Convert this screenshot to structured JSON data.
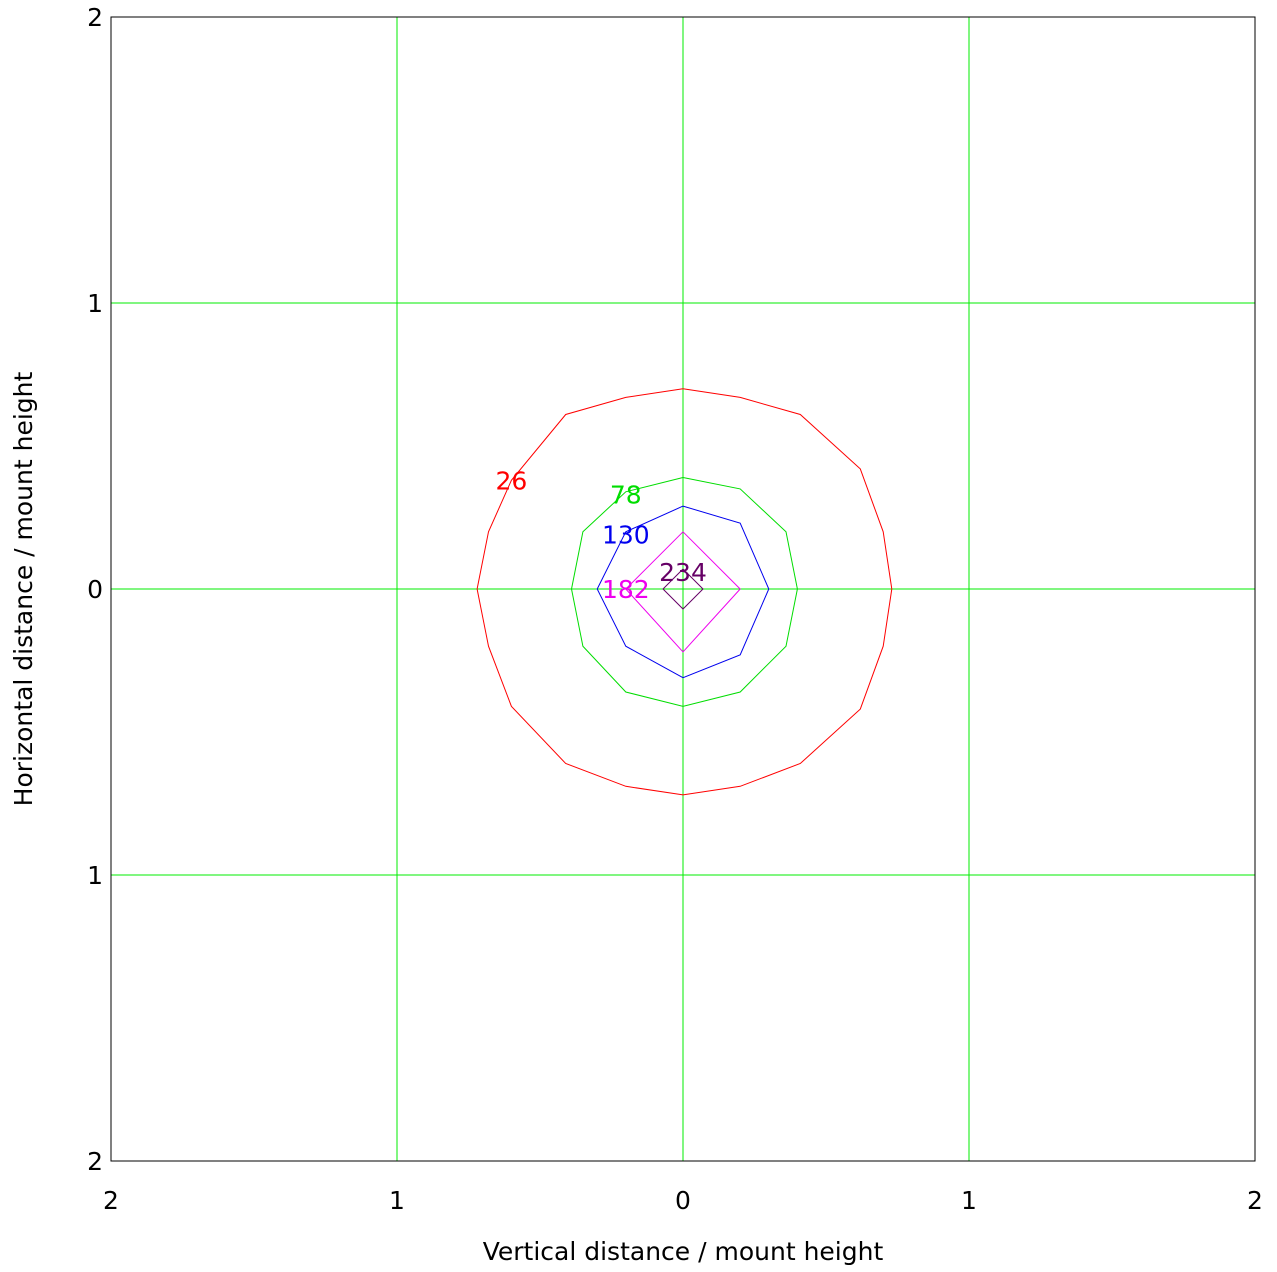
{
  "chart_data": {
    "type": "contour",
    "title": "",
    "xlabel": "Vertical distance / mount height",
    "ylabel": "Horizontal distance / mount height",
    "xlim": [
      -2,
      2
    ],
    "ylim": [
      -2,
      2
    ],
    "x_ticks": [
      {
        "value": -2,
        "label": "2"
      },
      {
        "value": -1,
        "label": "1"
      },
      {
        "value": 0,
        "label": "0"
      },
      {
        "value": 1,
        "label": "1"
      },
      {
        "value": 2,
        "label": "2"
      }
    ],
    "y_ticks": [
      {
        "value": -2,
        "label": "2"
      },
      {
        "value": -1,
        "label": "1"
      },
      {
        "value": 0,
        "label": "0"
      },
      {
        "value": 1,
        "label": "1"
      },
      {
        "value": 2,
        "label": "2"
      }
    ],
    "grid": true,
    "grid_color": "#00ee00",
    "axis_color": "#000000",
    "contours": [
      {
        "level": 26,
        "label": "26",
        "color": "#ff0000",
        "label_at": [
          -0.6,
          0.38
        ],
        "points": [
          [
            0,
            0.7
          ],
          [
            0.2,
            0.67
          ],
          [
            0.41,
            0.61
          ],
          [
            0.62,
            0.42
          ],
          [
            0.7,
            0.2
          ],
          [
            0.73,
            0
          ],
          [
            0.7,
            -0.2
          ],
          [
            0.62,
            -0.42
          ],
          [
            0.41,
            -0.61
          ],
          [
            0.2,
            -0.69
          ],
          [
            0,
            -0.72
          ],
          [
            -0.2,
            -0.69
          ],
          [
            -0.41,
            -0.61
          ],
          [
            -0.6,
            -0.41
          ],
          [
            -0.68,
            -0.2
          ],
          [
            -0.72,
            0
          ],
          [
            -0.68,
            0.2
          ],
          [
            -0.6,
            0.38
          ],
          [
            -0.41,
            0.61
          ],
          [
            -0.2,
            0.67
          ],
          [
            0,
            0.7
          ]
        ]
      },
      {
        "level": 78,
        "label": "78",
        "color": "#00dd00",
        "label_at": [
          -0.2,
          0.33
        ],
        "points": [
          [
            0,
            0.39
          ],
          [
            0.2,
            0.35
          ],
          [
            0.36,
            0.2
          ],
          [
            0.4,
            0
          ],
          [
            0.36,
            -0.2
          ],
          [
            0.2,
            -0.36
          ],
          [
            0,
            -0.41
          ],
          [
            -0.2,
            -0.36
          ],
          [
            -0.35,
            -0.2
          ],
          [
            -0.39,
            0
          ],
          [
            -0.35,
            0.2
          ],
          [
            -0.2,
            0.34
          ],
          [
            0,
            0.39
          ]
        ]
      },
      {
        "level": 130,
        "label": "130",
        "color": "#0000ee",
        "label_at": [
          -0.2,
          0.19
        ],
        "points": [
          [
            0,
            0.29
          ],
          [
            0.2,
            0.23
          ],
          [
            0.3,
            0
          ],
          [
            0.2,
            -0.23
          ],
          [
            0,
            -0.31
          ],
          [
            -0.2,
            -0.2
          ],
          [
            -0.3,
            0
          ],
          [
            -0.2,
            0.2
          ],
          [
            0,
            0.29
          ]
        ]
      },
      {
        "level": 182,
        "label": "182",
        "color": "#ee00ee",
        "label_at": [
          -0.2,
          0.0
        ],
        "points": [
          [
            0,
            0.2
          ],
          [
            0.2,
            0
          ],
          [
            0,
            -0.22
          ],
          [
            -0.2,
            0
          ],
          [
            0,
            0.2
          ]
        ]
      },
      {
        "level": 234,
        "label": "234",
        "color": "#660066",
        "label_at": [
          0.0,
          0.06
        ],
        "points": [
          [
            0,
            0.07
          ],
          [
            0.07,
            0
          ],
          [
            0,
            -0.07
          ],
          [
            -0.07,
            0
          ],
          [
            0,
            0.07
          ]
        ]
      }
    ]
  }
}
